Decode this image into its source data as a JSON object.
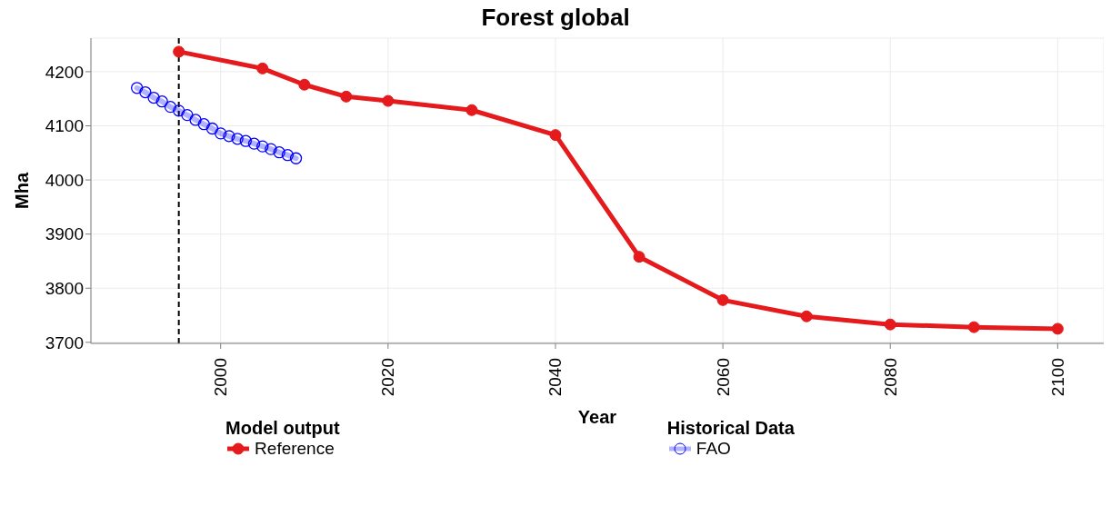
{
  "chart_data": {
    "type": "line",
    "title": "Forest global",
    "xlabel": "Year",
    "ylabel": "Mha",
    "legend_title": "Model output",
    "annotations": [
      "Historical Data"
    ],
    "xlim": [
      1984.5,
      2105.5
    ],
    "xticks": [
      2000,
      2020,
      2040,
      2060,
      2080,
      2100
    ],
    "ylim": [
      3698,
      4262
    ],
    "yticks": [
      3700,
      3800,
      3900,
      4000,
      4100,
      4200
    ],
    "grid": true,
    "legend": "bottom",
    "marker": "circle",
    "line_style": "solid",
    "ref_lines": [
      {
        "axis": "x",
        "value": 1995,
        "color": "#000000",
        "line_style": "dashed"
      }
    ],
    "series": [
      {
        "name": "Reference",
        "color": "#e41a1c",
        "x": [
          1995,
          2005,
          2010,
          2015,
          2020,
          2030,
          2040,
          2050,
          2060,
          2070,
          2080,
          2090,
          2100
        ],
        "values": [
          4237,
          4206,
          4176,
          4154,
          4146,
          4129,
          4083,
          3858,
          3778,
          3748,
          3733,
          3728,
          3725
        ]
      },
      {
        "name": "FAO",
        "color": "#0000ff",
        "x": [
          1990,
          1991,
          1992,
          1993,
          1994,
          1995,
          1996,
          1997,
          1998,
          1999,
          2000,
          2001,
          2002,
          2003,
          2004,
          2005,
          2006,
          2007,
          2008,
          2009
        ],
        "values": [
          4170,
          4162,
          4152,
          4145,
          4135,
          4128,
          4120,
          4111,
          4103,
          4095,
          4086,
          4081,
          4076,
          4072,
          4067,
          4062,
          4057,
          4051,
          4046,
          4040
        ]
      }
    ]
  }
}
